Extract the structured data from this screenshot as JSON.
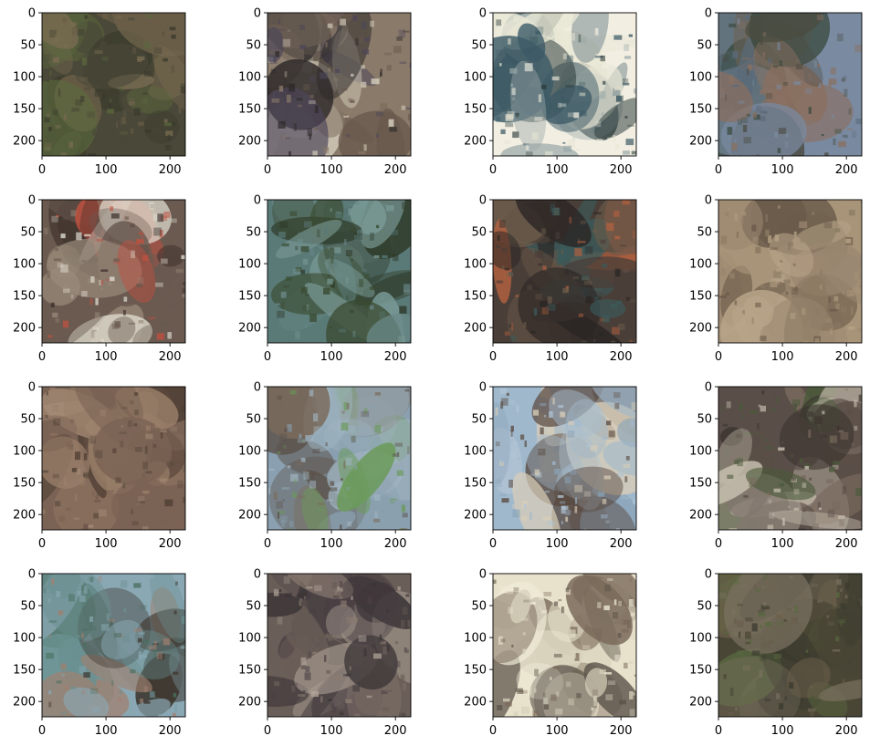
{
  "chart_data": {
    "type": "image-grid",
    "rows": 4,
    "cols": 4,
    "subplot_xlim": [
      0,
      224
    ],
    "subplot_ylim": [
      224,
      0
    ],
    "x_ticks": [
      0,
      100,
      200
    ],
    "x_tick_labels": [
      "0",
      "100",
      "200"
    ],
    "y_ticks": [
      0,
      50,
      100,
      150,
      200
    ],
    "y_tick_labels": [
      "0",
      "50",
      "100",
      "150",
      "200"
    ],
    "panels": [
      {
        "name": "panel-1",
        "palette": [
          "#4a4838",
          "#5c6a3e",
          "#6b5e48",
          "#3a3a2c",
          "#7a6c52"
        ]
      },
      {
        "name": "panel-2",
        "palette": [
          "#8a7a6a",
          "#4c4658",
          "#d8d2c0",
          "#6a5a4e",
          "#2e2a2a"
        ]
      },
      {
        "name": "panel-3",
        "palette": [
          "#f2efe2",
          "#e8e6d4",
          "#3c5a66",
          "#2a3a3a",
          "#9aa8a8"
        ]
      },
      {
        "name": "panel-4",
        "palette": [
          "#7a8aa0",
          "#4a4a40",
          "#5a6a7a",
          "#8a7060",
          "#3a4a40"
        ]
      },
      {
        "name": "panel-5",
        "palette": [
          "#6a5a50",
          "#e0dcd0",
          "#3a2e2a",
          "#9a8a7a",
          "#c05040"
        ]
      },
      {
        "name": "panel-6",
        "palette": [
          "#5a7a78",
          "#3a4a30",
          "#6a8888",
          "#2e3a28",
          "#7a9a96"
        ]
      },
      {
        "name": "panel-7",
        "palette": [
          "#4a3e38",
          "#6a5a4a",
          "#3a5a5a",
          "#b06040",
          "#2a2624"
        ]
      },
      {
        "name": "panel-8",
        "palette": [
          "#a89478",
          "#8a7a62",
          "#b8a488",
          "#6a5a4a",
          "#9a8670"
        ]
      },
      {
        "name": "panel-9",
        "palette": [
          "#7a6254",
          "#9a806a",
          "#5a4a3e",
          "#a8907a",
          "#4a3a30"
        ]
      },
      {
        "name": "panel-10",
        "palette": [
          "#8aa0b0",
          "#7a6a5a",
          "#6a9a58",
          "#5a5048",
          "#a0b4c0"
        ]
      },
      {
        "name": "panel-11",
        "palette": [
          "#a0b8cc",
          "#b0c4d4",
          "#5a4a40",
          "#d8cdb8",
          "#8aa4b8"
        ]
      },
      {
        "name": "panel-12",
        "palette": [
          "#5a4e48",
          "#3a342e",
          "#7a6a5e",
          "#c8c0b0",
          "#4a5a3a"
        ]
      },
      {
        "name": "panel-13",
        "palette": [
          "#8aa8b4",
          "#6a9090",
          "#3a3028",
          "#4a7060",
          "#a08070"
        ]
      },
      {
        "name": "panel-14",
        "palette": [
          "#6a5e58",
          "#8a7a70",
          "#4a4044",
          "#b0a498",
          "#3a3436"
        ]
      },
      {
        "name": "panel-15",
        "palette": [
          "#e8e2cc",
          "#d8d2bc",
          "#5a5248",
          "#7a6a5a",
          "#f0ecd8"
        ]
      },
      {
        "name": "panel-16",
        "palette": [
          "#4a4636",
          "#5a6a40",
          "#6a5e4a",
          "#3a3a2e",
          "#7a7060"
        ]
      }
    ]
  }
}
